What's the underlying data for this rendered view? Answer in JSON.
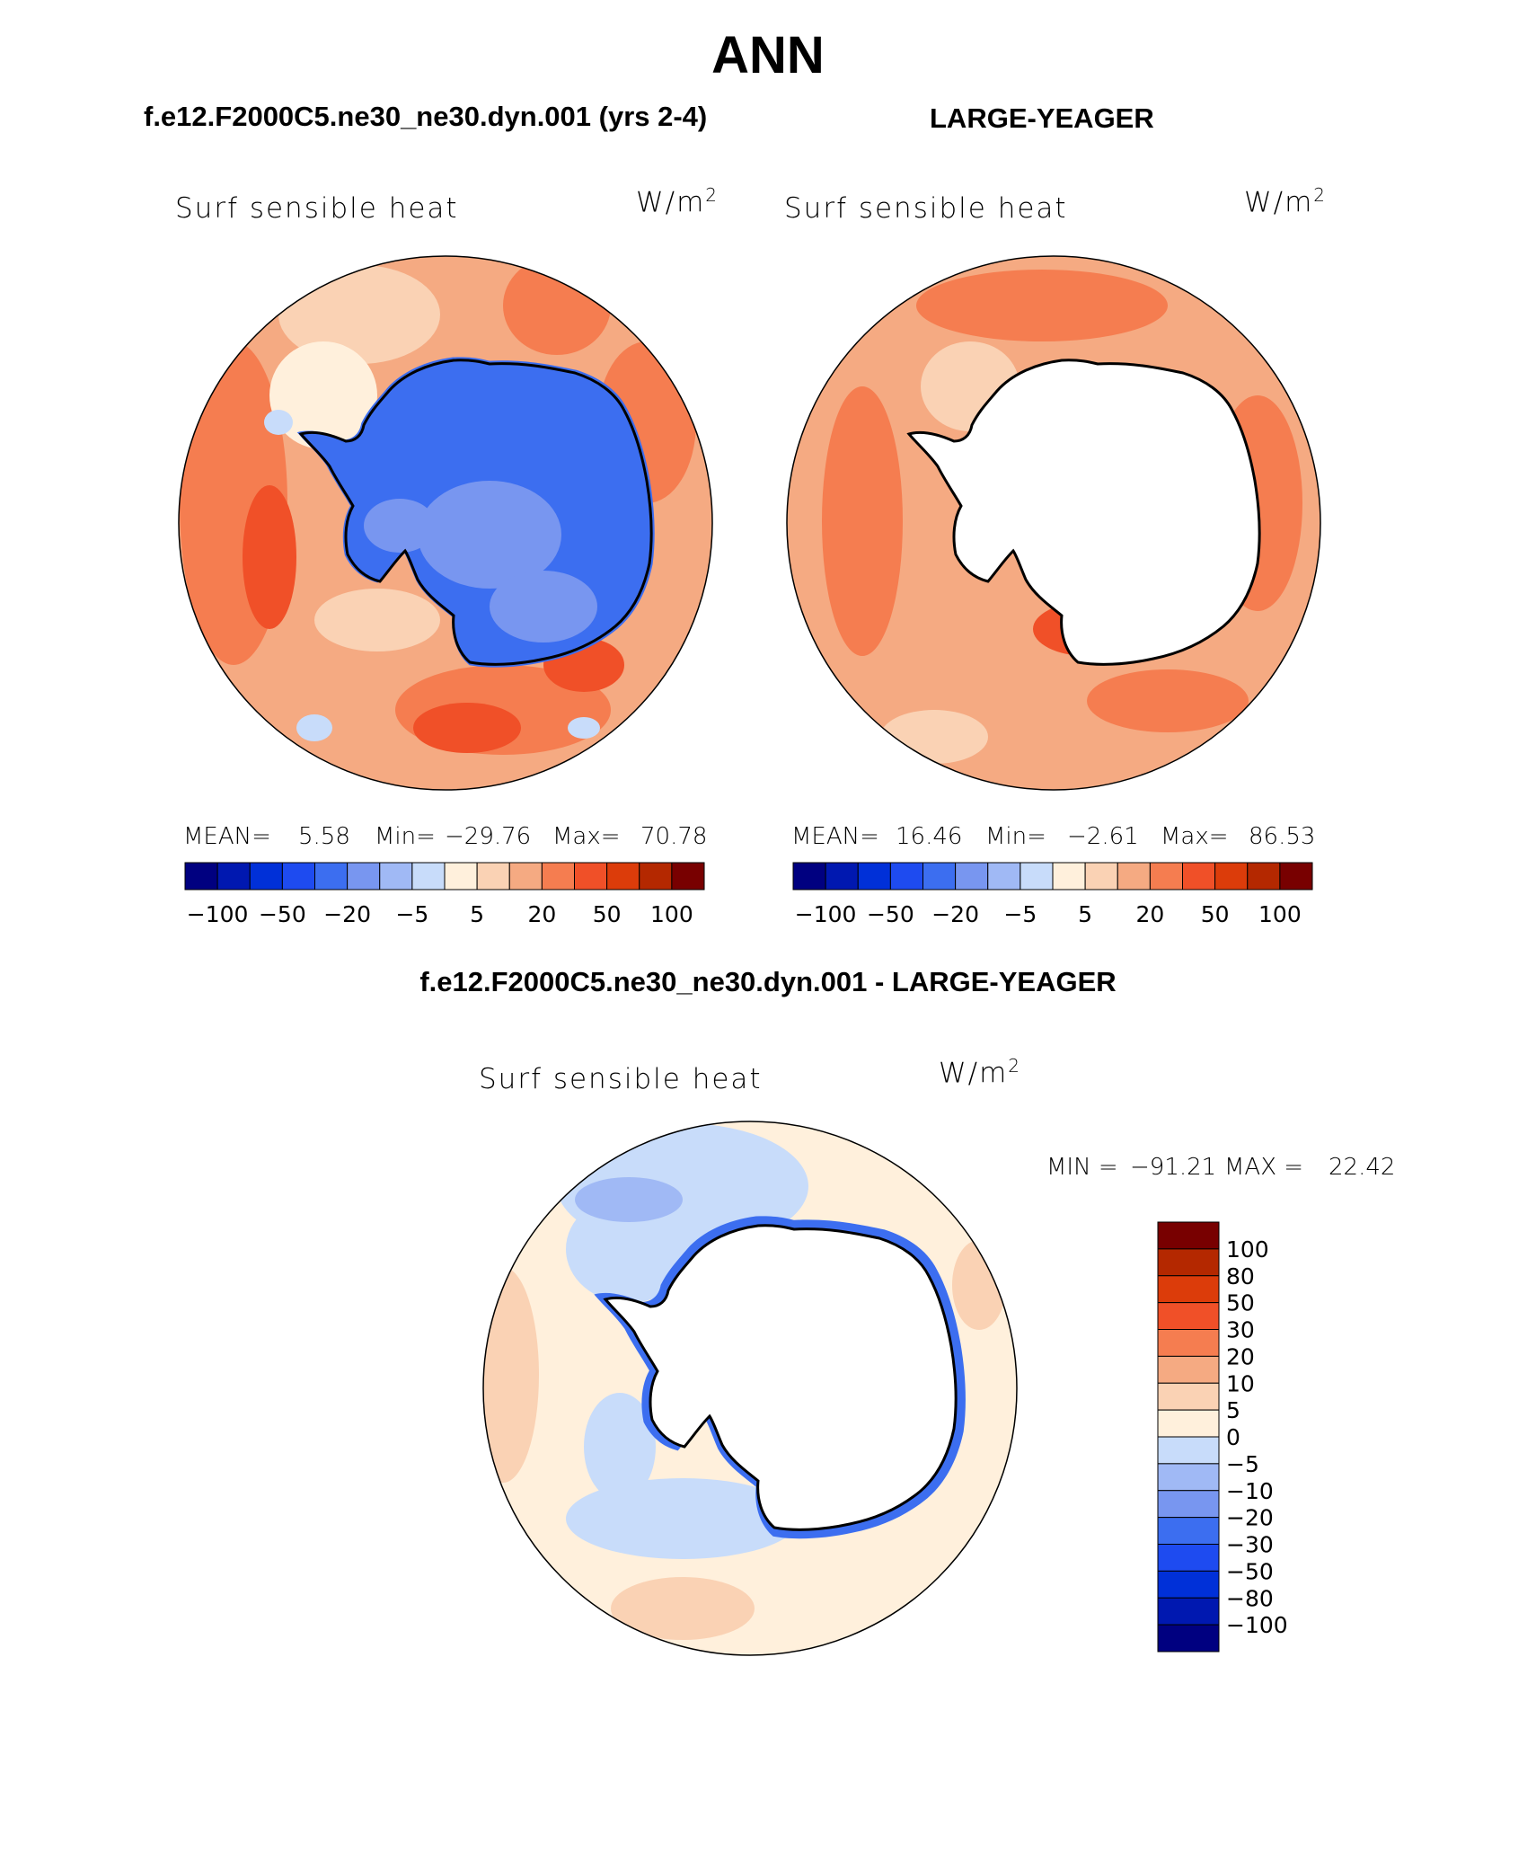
{
  "main_title": "ANN",
  "panels": {
    "case": {
      "title": "f.e12.F2000C5.ne30_ne30.dyn.001 (yrs 2-4)",
      "variable": "Surf  sensible  heat",
      "units_base": "W/m",
      "units_exp": "2",
      "mean_label": "MEAN=",
      "mean_value": "5.58",
      "min_label": "Min=",
      "min_value": "−29.76",
      "max_label": "Max=",
      "max_value": "70.78"
    },
    "ref": {
      "title": "LARGE-YEAGER",
      "variable": "Surf  sensible  heat",
      "units_base": "W/m",
      "units_exp": "2",
      "mean_label": "MEAN=",
      "mean_value": "16.46",
      "min_label": "Min=",
      "min_value": "−2.61",
      "max_label": "Max=",
      "max_value": "86.53"
    },
    "diff": {
      "title": "f.e12.F2000C5.ne30_ne30.dyn.001 - LARGE-YEAGER",
      "variable": "Surf  sensible  heat",
      "units_base": "W/m",
      "units_exp": "2",
      "min_label": "MIN =",
      "min_value": "−91.21",
      "max_label": "MAX =",
      "max_value": "22.42"
    }
  },
  "horizontal_colorbar": {
    "tick_labels": [
      "−100",
      "−50",
      "−20",
      "−5",
      "5",
      "20",
      "50",
      "100"
    ],
    "colors": [
      "#000080",
      "#0018b0",
      "#0030d8",
      "#1e4bf0",
      "#3c6ef0",
      "#7896f0",
      "#a0b9f5",
      "#c8dcfa",
      "#fff0dc",
      "#fad2b4",
      "#f5aa82",
      "#f57d50",
      "#f05028",
      "#dc3c0a",
      "#b42800",
      "#780000"
    ]
  },
  "vertical_colorbar": {
    "tick_labels": [
      "100",
      "80",
      "50",
      "30",
      "20",
      "10",
      "5",
      "0",
      "−5",
      "−10",
      "−20",
      "−30",
      "−50",
      "−80",
      "−100"
    ],
    "colors": [
      "#780000",
      "#b42800",
      "#dc3c0a",
      "#f05028",
      "#f57d50",
      "#f5aa82",
      "#fad2b4",
      "#fff0dc",
      "#c8dcfa",
      "#a0b9f5",
      "#7896f0",
      "#3c6ef0",
      "#1e4bf0",
      "#0030d8",
      "#0018b0",
      "#000080"
    ]
  },
  "chart_data": [
    {
      "type": "heatmap",
      "projection": "south polar stereographic",
      "title": "f.e12.F2000C5.ne30_ne30.dyn.001 (yrs 2-4)",
      "variable": "Surf sensible heat",
      "units": "W/m2",
      "mean": 5.58,
      "min": -29.76,
      "max": 70.78,
      "levels": [
        -100,
        -80,
        -50,
        -30,
        -20,
        -10,
        -5,
        0,
        5,
        10,
        20,
        30,
        50,
        80,
        100
      ]
    },
    {
      "type": "heatmap",
      "projection": "south polar stereographic",
      "title": "LARGE-YEAGER",
      "variable": "Surf sensible heat",
      "units": "W/m2",
      "mean": 16.46,
      "min": -2.61,
      "max": 86.53,
      "levels": [
        -100,
        -80,
        -50,
        -30,
        -20,
        -10,
        -5,
        0,
        5,
        10,
        20,
        30,
        50,
        80,
        100
      ]
    },
    {
      "type": "heatmap",
      "projection": "south polar stereographic",
      "title": "f.e12.F2000C5.ne30_ne30.dyn.001 - LARGE-YEAGER",
      "variable": "Surf sensible heat",
      "units": "W/m2",
      "min": -91.21,
      "max": 22.42,
      "levels": [
        -100,
        -80,
        -50,
        -30,
        -20,
        -10,
        -5,
        0,
        5,
        10,
        20,
        30,
        50,
        80,
        100
      ]
    }
  ]
}
